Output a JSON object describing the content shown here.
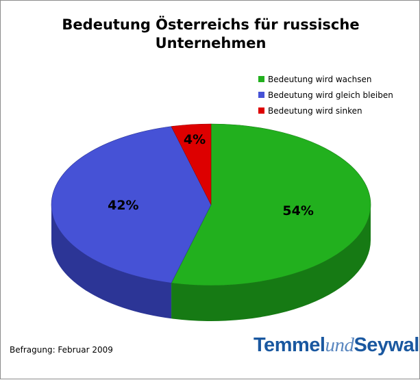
{
  "chart_data": {
    "type": "pie",
    "title_lines": [
      "Bedeutung Österreichs für russische",
      "Unternehmen"
    ],
    "series": [
      {
        "name": "Bedeutung wird wachsen",
        "value": 54,
        "label": "54%",
        "color": "#22b01e",
        "side_color": "#167a14"
      },
      {
        "name": "Bedeutung wird gleich bleiben",
        "value": 42,
        "label": "42%",
        "color": "#4652d6",
        "side_color": "#2c3596"
      },
      {
        "name": "Bedeutung wird sinken",
        "value": 4,
        "label": "4%",
        "color": "#dd0000",
        "side_color": "#990000"
      }
    ],
    "legend_position": "top-right"
  },
  "note": "Befragung: Februar 2009",
  "logo": {
    "part1": "Temmel",
    "part2": "und",
    "part3": "Seywald",
    "color": "#1a58a0"
  }
}
